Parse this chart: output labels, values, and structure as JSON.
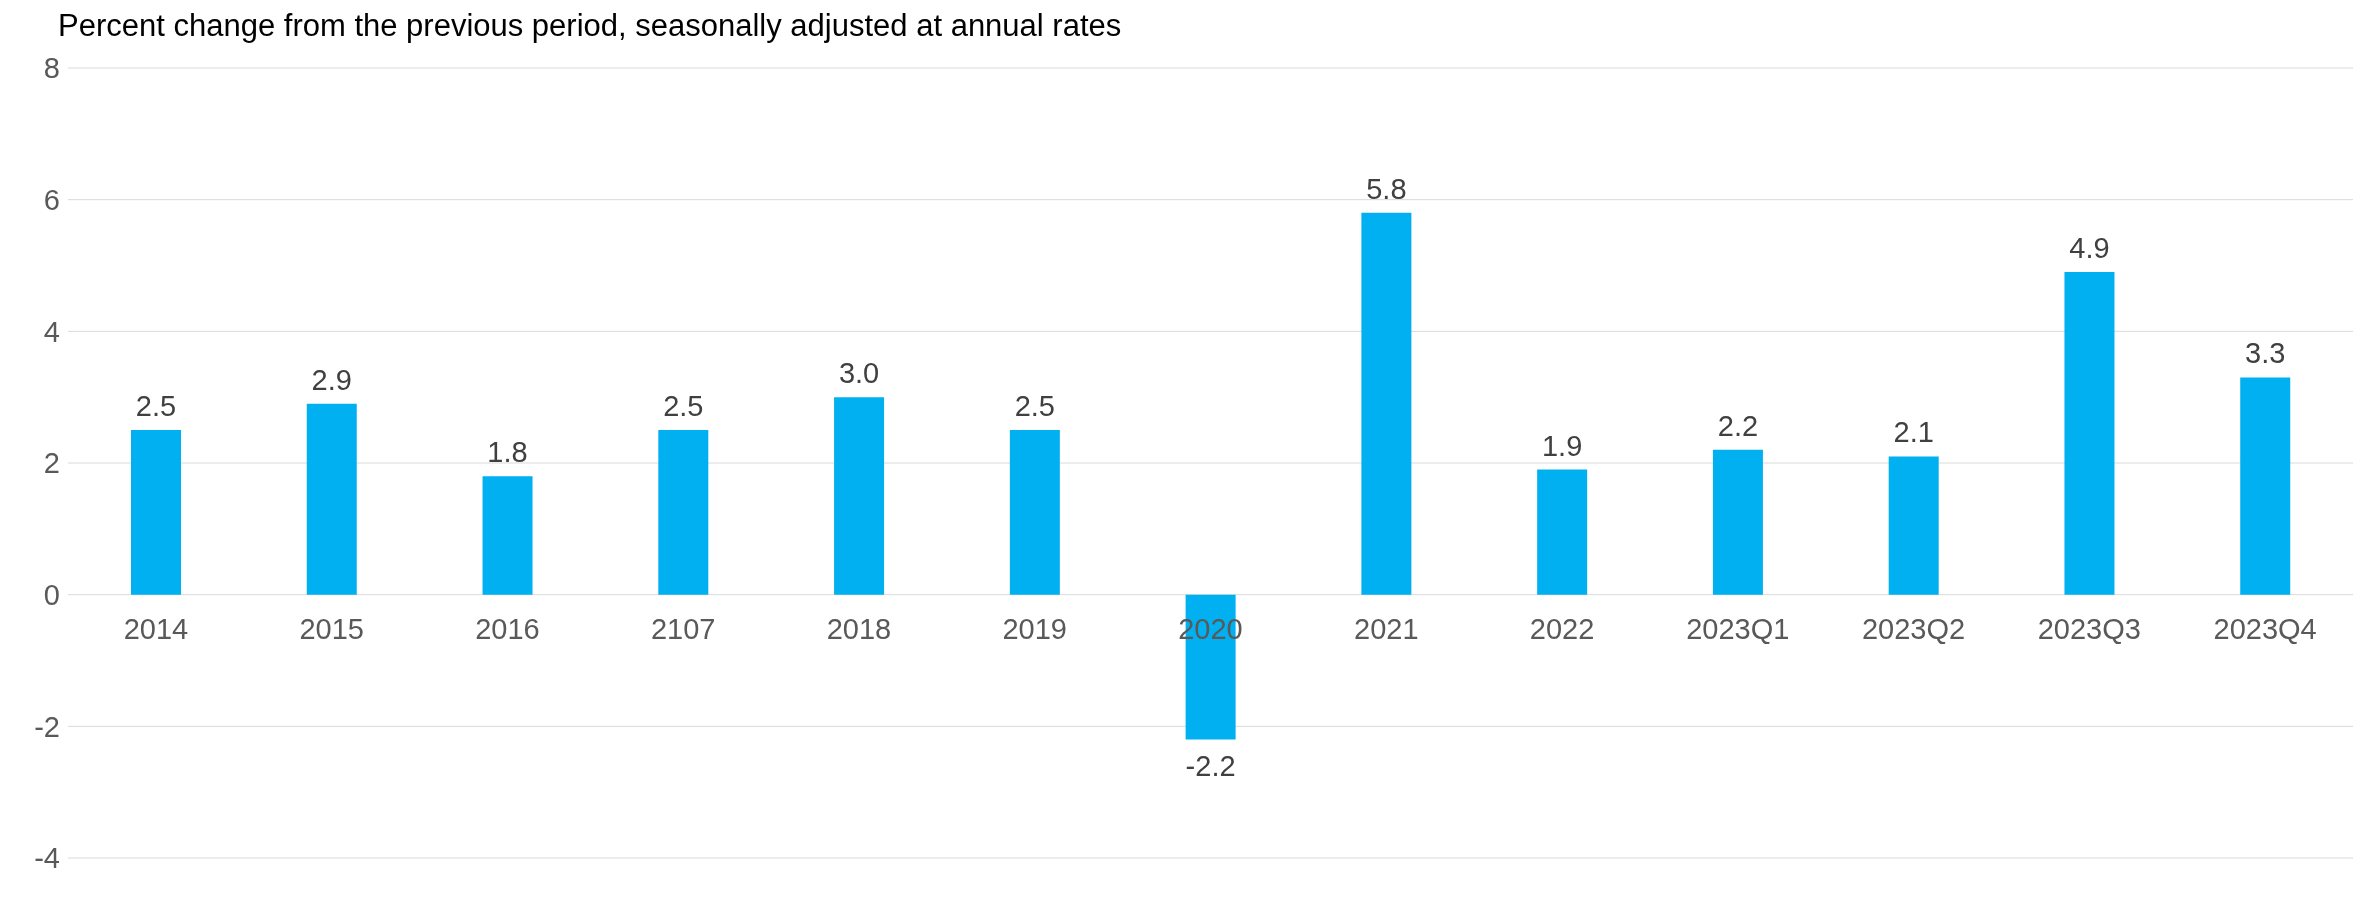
{
  "chart_data": {
    "type": "bar",
    "title": "Percent change from the previous period, seasonally adjusted at annual rates",
    "categories": [
      "2014",
      "2015",
      "2016",
      "2107",
      "2018",
      "2019",
      "2020",
      "2021",
      "2022",
      "2023Q1",
      "2023Q2",
      "2023Q3",
      "2023Q4"
    ],
    "values": [
      2.5,
      2.9,
      1.8,
      2.5,
      3.0,
      2.5,
      -2.2,
      5.8,
      1.9,
      2.2,
      2.1,
      4.9,
      3.3
    ],
    "value_labels": [
      "2.5",
      "2.9",
      "1.8",
      "2.5",
      "3.0",
      "2.5",
      "-2.2",
      "5.8",
      "1.9",
      "2.2",
      "2.1",
      "4.9",
      "3.3"
    ],
    "color": "#00b0f0",
    "ylim": [
      -4,
      8
    ],
    "yticks": [
      -4,
      -2,
      0,
      2,
      4,
      6,
      8
    ],
    "grid": "y"
  }
}
